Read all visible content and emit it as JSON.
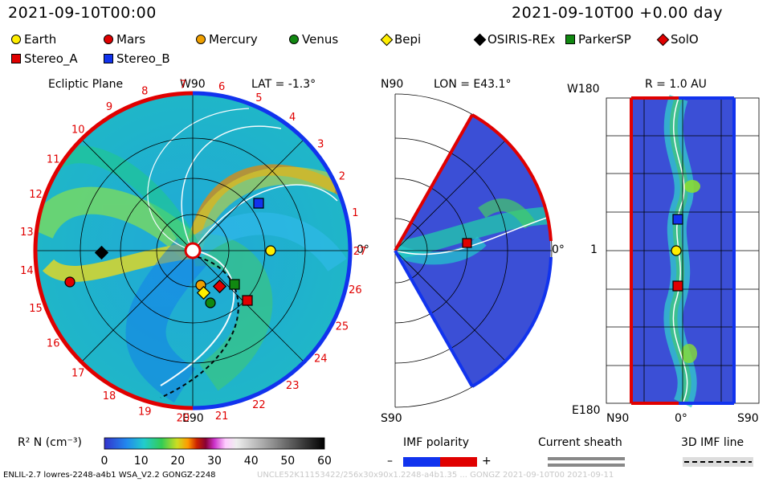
{
  "header": {
    "time_left": "2021-09-10T00:00",
    "time_right": "2021-09-10T00 +0.00 day"
  },
  "legend": [
    {
      "label": "Earth",
      "color": "#ffee00",
      "shape": "circle"
    },
    {
      "label": "Mars",
      "color": "#e00000",
      "shape": "circle"
    },
    {
      "label": "Mercury",
      "color": "#f0a000",
      "shape": "circle"
    },
    {
      "label": "Venus",
      "color": "#118811",
      "shape": "circle"
    },
    {
      "label": "Bepi",
      "color": "#ffee00",
      "shape": "diamond"
    },
    {
      "label": "OSIRIS-REx",
      "color": "#000000",
      "shape": "diamond"
    },
    {
      "label": "ParkerSP",
      "color": "#118811",
      "shape": "square"
    },
    {
      "label": "SolO",
      "color": "#e00000",
      "shape": "diamond"
    },
    {
      "label": "Stereo_A",
      "color": "#e00000",
      "shape": "square"
    },
    {
      "label": "Stereo_B",
      "color": "#1133ee",
      "shape": "square"
    }
  ],
  "panels": {
    "ecliptic": {
      "title": "Ecliptic Plane",
      "lat": "LAT = -1.3°",
      "top": "W90",
      "bottom": "E90",
      "right": "0°"
    },
    "meridional": {
      "lon": "LON = E43.1°",
      "top": "N90",
      "bottom": "S90",
      "right": "0°"
    },
    "radial": {
      "title": "R = 1.0 AU",
      "top_left": "W180",
      "mid_left": "1",
      "bottom_left": "E180",
      "x_left": "N90",
      "x_mid": "0°",
      "x_right": "S90"
    }
  },
  "carrington_labels": [
    "27",
    "1",
    "2",
    "3",
    "4",
    "5",
    "6",
    "7",
    "8",
    "9",
    "10",
    "11",
    "12",
    "13",
    "14",
    "15",
    "16",
    "17",
    "18",
    "19",
    "20",
    "21",
    "22",
    "23",
    "24",
    "25",
    "26"
  ],
  "colorbar": {
    "label": "R² N (cm⁻³)",
    "ticks": [
      "0",
      "10",
      "20",
      "30",
      "40",
      "50",
      "60"
    ]
  },
  "imf_polarity": {
    "title": "IMF polarity",
    "minus": "–",
    "plus": "+"
  },
  "current_sheath": {
    "title": "Current sheath"
  },
  "imf_line": {
    "title": "3D IMF line"
  },
  "footer": {
    "left": "ENLIL-2.7 lowres-2248-a4b1 WSA_V2.2 GONGZ-2248",
    "right": "UNCLE52K11153422/256x30x90x1.2248-a4b1.35 ... GONGZ 2021-09-10T00 2021-09-11"
  },
  "colors": {
    "accent_red": "#e00000",
    "accent_blue": "#1133ee"
  }
}
